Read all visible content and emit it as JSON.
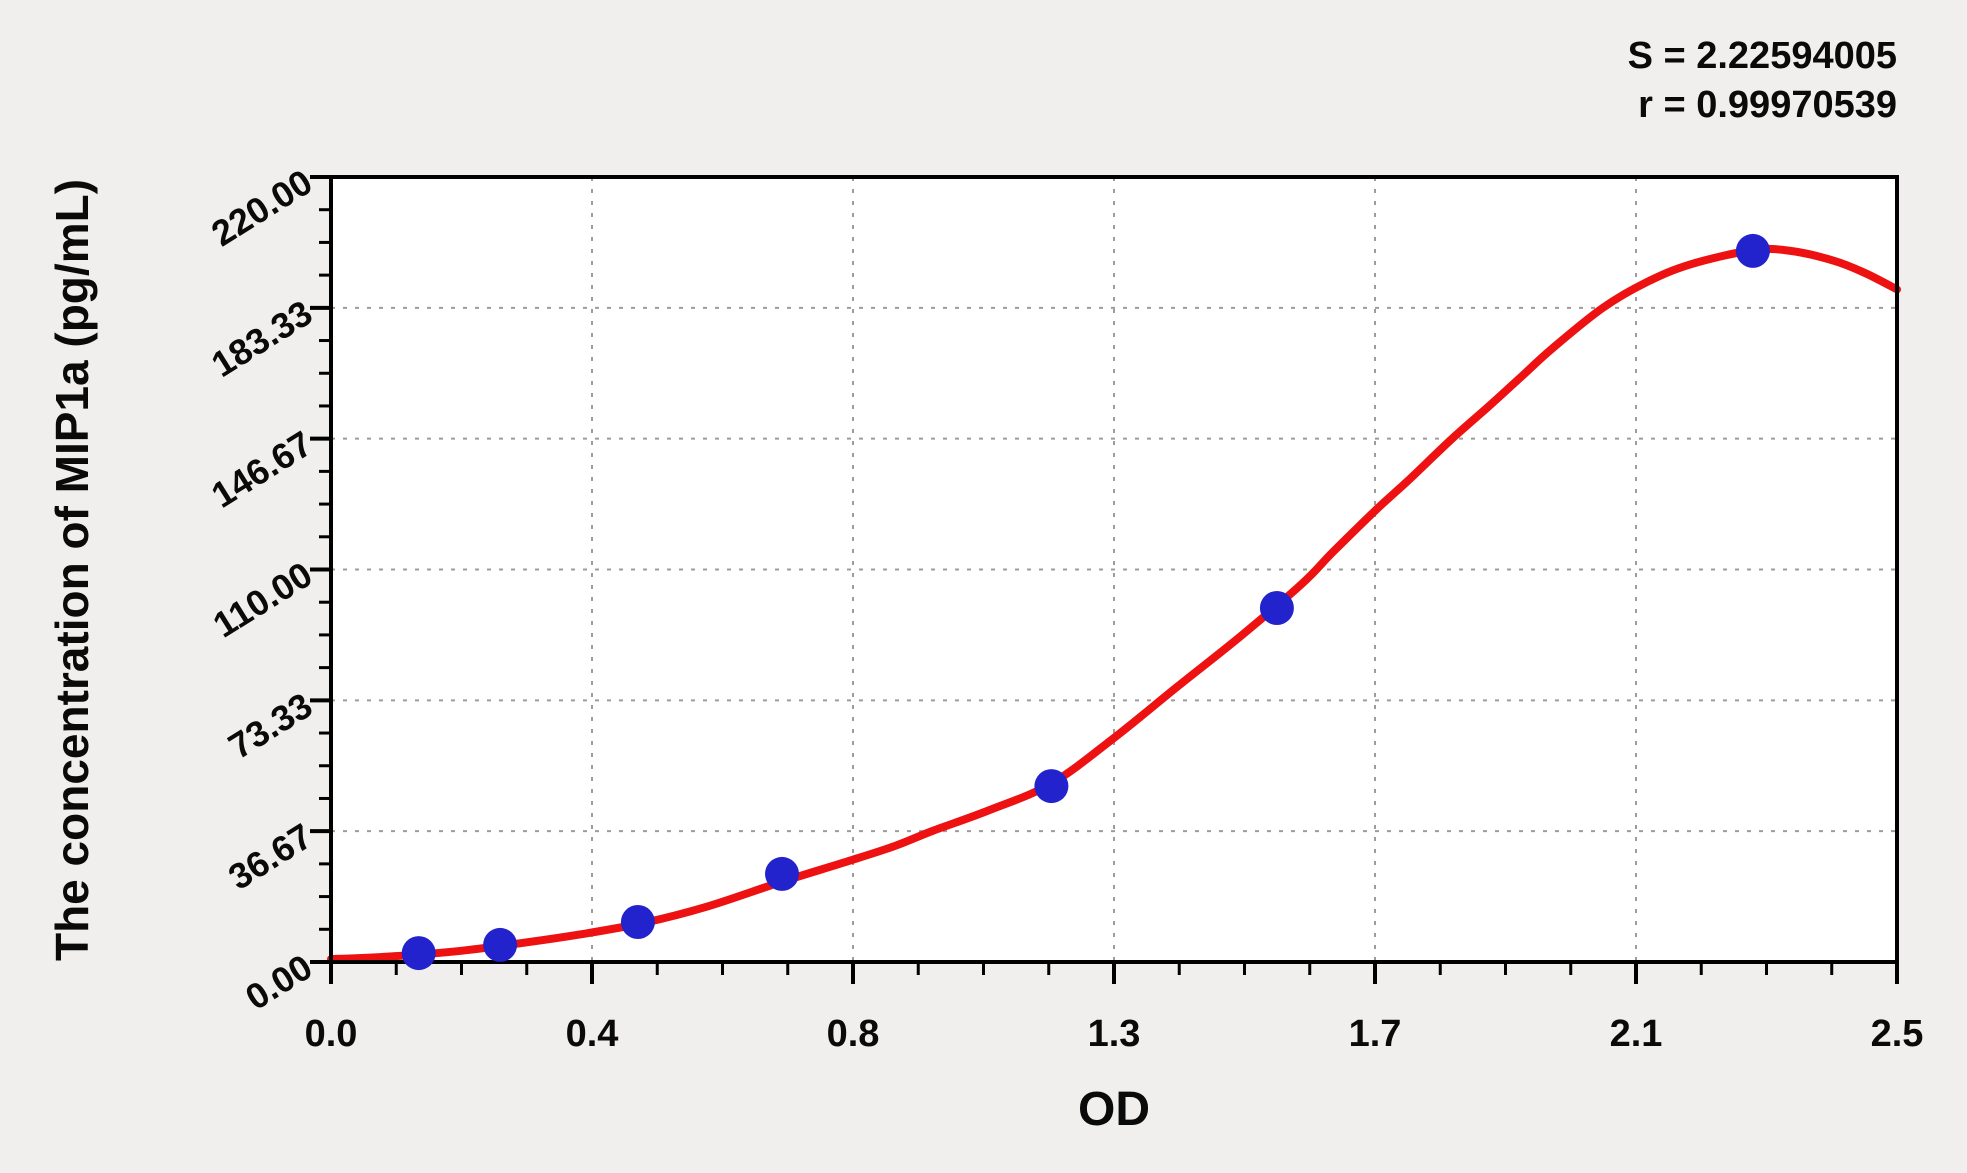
{
  "chart_data": {
    "type": "line",
    "title": "",
    "xlabel": "OD",
    "ylabel": "The concentration of MIP1a (pg/mL)",
    "xlim": [
      0,
      2.5
    ],
    "ylim": [
      0,
      220
    ],
    "x_ticks": {
      "values": [
        0,
        0.4167,
        0.8333,
        1.25,
        1.6667,
        2.0833,
        2.5
      ],
      "labels": [
        "0.0",
        "0.4",
        "0.8",
        "1.3",
        "1.7",
        "2.1",
        "2.5"
      ],
      "minor_divisions": 4
    },
    "y_ticks": {
      "values": [
        0,
        36.67,
        73.33,
        110,
        146.67,
        183.33,
        220
      ],
      "labels": [
        "0.00",
        "36.67",
        "73.33",
        "110.00",
        "146.67",
        "183.33",
        "220.00"
      ],
      "minor_divisions": 4
    },
    "grid": {
      "major": true,
      "style": "dashed",
      "color": "#9c9c9c"
    },
    "legend": "none",
    "annotations": {
      "s_line": "S = 2.22594005",
      "r_line": "r = 0.99970539"
    },
    "series": [
      {
        "name": "standard points",
        "type": "scatter",
        "color": "#2323cd",
        "marker": "circle",
        "points": [
          [
            0.14,
            2.5
          ],
          [
            0.27,
            4.8
          ],
          [
            0.49,
            11.2
          ],
          [
            0.72,
            24.7
          ],
          [
            1.15,
            49.3
          ],
          [
            1.51,
            99.2
          ],
          [
            2.27,
            199.3
          ]
        ]
      },
      {
        "name": "fitted curve",
        "type": "line",
        "color": "#ee1111",
        "points": [
          [
            0,
            0.8
          ],
          [
            0.1,
            1.6
          ],
          [
            0.2,
            3.0
          ],
          [
            0.3,
            5.2
          ],
          [
            0.4,
            7.8
          ],
          [
            0.5,
            11.0
          ],
          [
            0.6,
            15.5
          ],
          [
            0.72,
            22.5
          ],
          [
            0.83,
            28.5
          ],
          [
            0.9,
            32.5
          ],
          [
            0.96,
            36.7
          ],
          [
            1.05,
            42.5
          ],
          [
            1.15,
            50.0
          ],
          [
            1.25,
            62.8
          ],
          [
            1.35,
            77.0
          ],
          [
            1.45,
            91.0
          ],
          [
            1.55,
            106.0
          ],
          [
            1.6,
            115.0
          ],
          [
            1.67,
            127.0
          ],
          [
            1.72,
            135.0
          ],
          [
            1.79,
            146.7
          ],
          [
            1.85,
            156.0
          ],
          [
            1.9,
            164.0
          ],
          [
            1.95,
            172.0
          ],
          [
            2.03,
            183.3
          ],
          [
            2.1,
            190.5
          ],
          [
            2.17,
            195.5
          ],
          [
            2.27,
            199.5
          ],
          [
            2.33,
            199.3
          ],
          [
            2.4,
            196.5
          ],
          [
            2.45,
            193.0
          ],
          [
            2.5,
            188.5
          ]
        ]
      }
    ],
    "plot_colors": {
      "plot_background": "#ffffff",
      "page_background": "#f0efed",
      "axis": "#000000",
      "text": "#0a0a0a"
    }
  }
}
